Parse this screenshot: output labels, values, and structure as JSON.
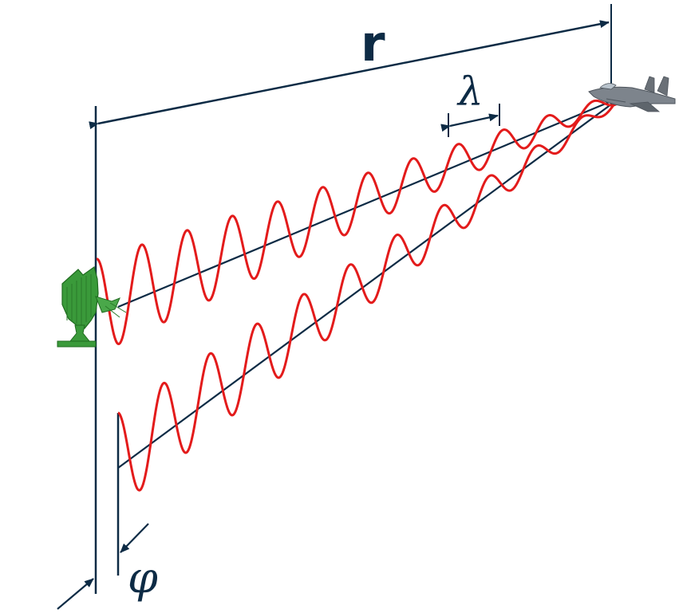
{
  "labels": {
    "range": "r",
    "wavelength": "λ",
    "phase": "φ"
  },
  "colors": {
    "wave": "#e31b1b",
    "line": "#0d2b45",
    "antenna": "#3a9a3a",
    "aircraft": "#7d848c"
  },
  "icons": {
    "antenna": "radar-antenna-icon",
    "aircraft": "fighter-jet-icon"
  }
}
